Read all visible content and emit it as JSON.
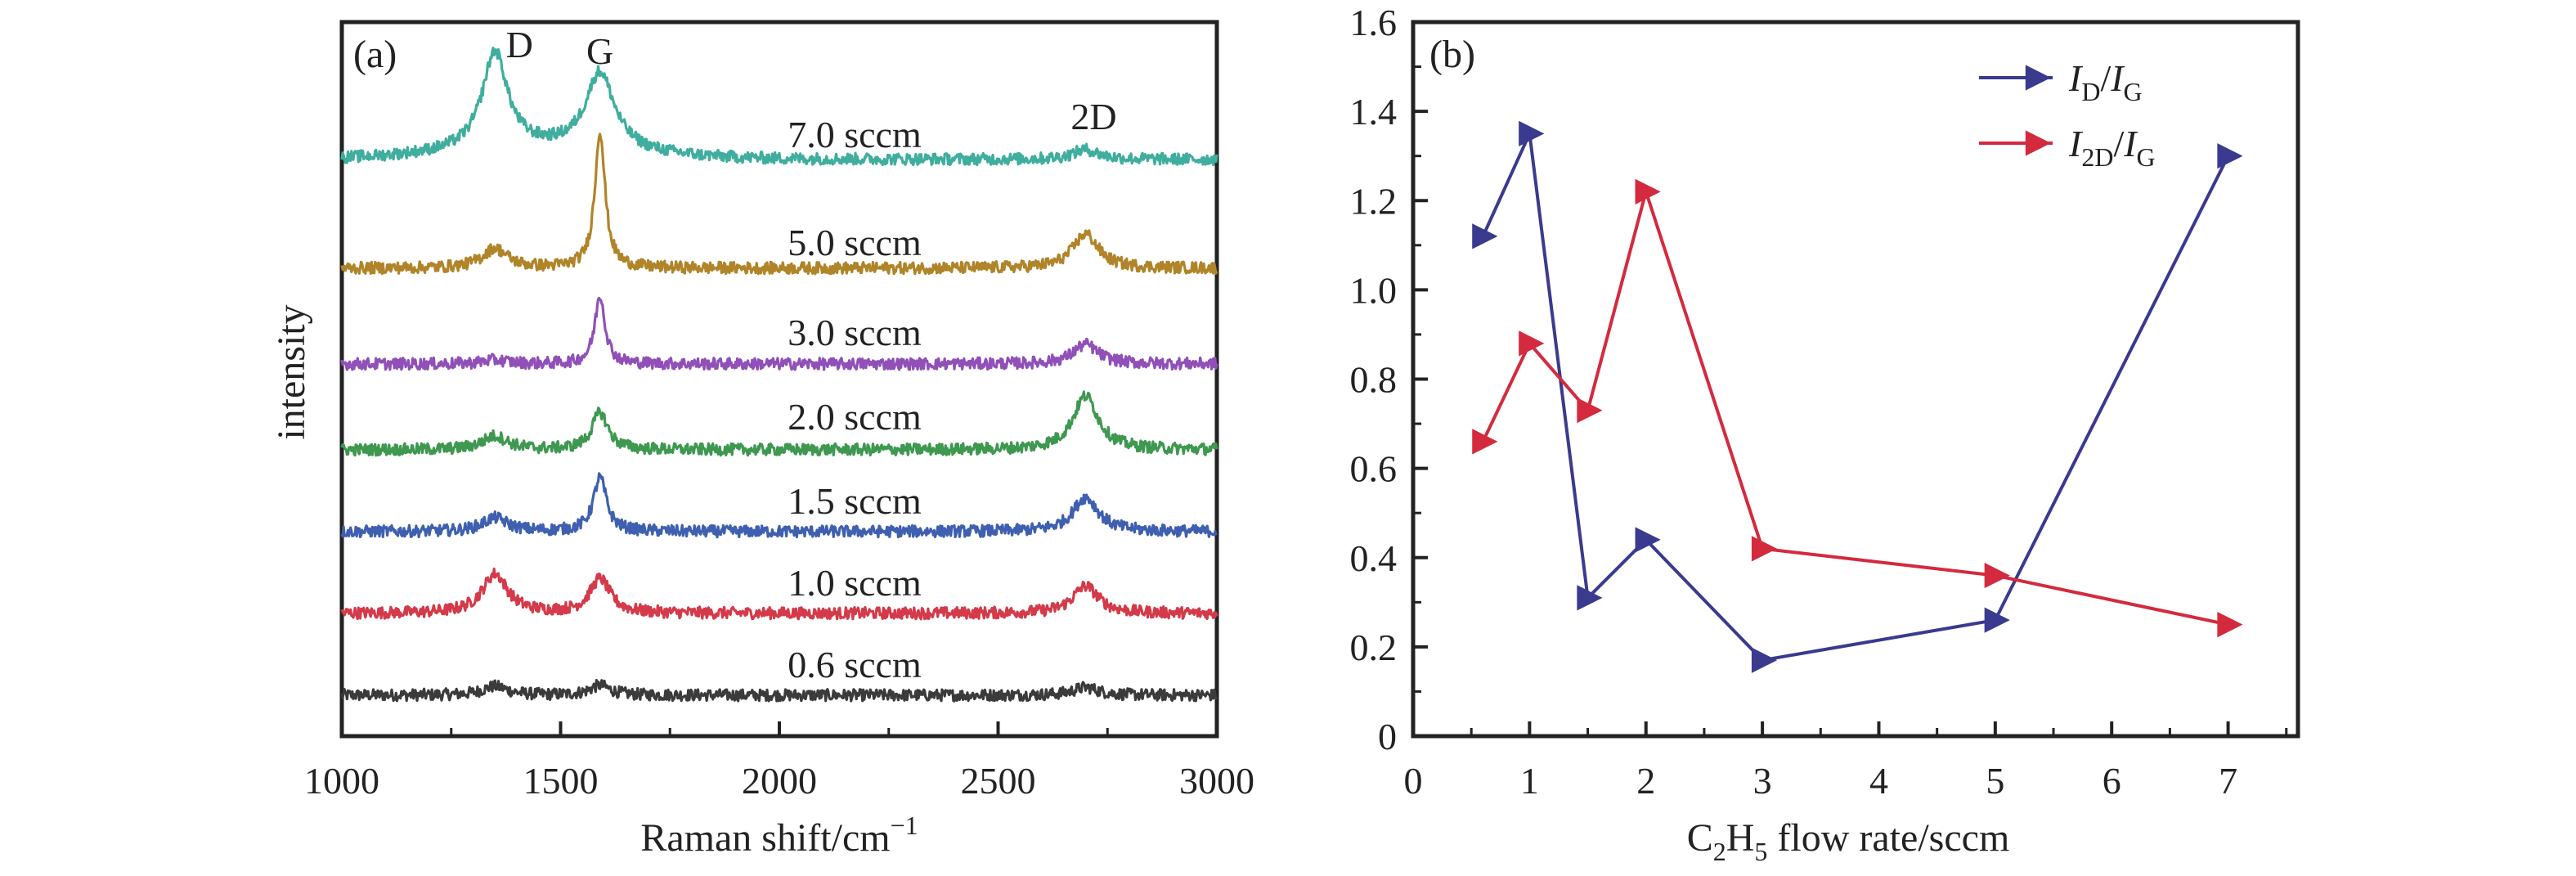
{
  "chart_data": [
    {
      "id": "a",
      "type": "line",
      "panel_label": "(a)",
      "xlabel": "Raman shift/cm",
      "xlabel_sup": "−1",
      "ylabel": "intensity",
      "xlim": [
        1000,
        3000
      ],
      "x_ticks": [
        1000,
        1500,
        2000,
        2500,
        3000
      ],
      "y_ticks_shown": false,
      "peaks": [
        {
          "label": "D",
          "x": 1350
        },
        {
          "label": "G",
          "x": 1590
        },
        {
          "label": "2D",
          "x": 2700
        }
      ],
      "series": [
        {
          "name": "0.6 sccm",
          "color": "#3b3b3b",
          "d": 0.09,
          "g": 0.1,
          "gw": 28,
          "twod": 0.08,
          "baseline": 0.0
        },
        {
          "name": "1.0 sccm",
          "color": "#d43a4a",
          "d": 0.4,
          "g": 0.35,
          "gw": 28,
          "twod": 0.28,
          "baseline": 0.0
        },
        {
          "name": "1.5 sccm",
          "color": "#3f60b0",
          "d": 0.14,
          "g": 0.55,
          "gw": 18,
          "twod": 0.35,
          "baseline": 0.0
        },
        {
          "name": "2.0 sccm",
          "color": "#3e9850",
          "d": 0.14,
          "g": 0.38,
          "gw": 22,
          "twod": 0.55,
          "baseline": 0.0
        },
        {
          "name": "3.0 sccm",
          "color": "#9050b8",
          "d": 0.04,
          "g": 0.7,
          "gw": 14,
          "twod": 0.2,
          "baseline": 0.0
        },
        {
          "name": "5.0 sccm",
          "color": "#b08428",
          "d": 0.2,
          "g": 1.4,
          "gw": 14,
          "twod": 0.35,
          "baseline": 0.0
        },
        {
          "name": "7.0 sccm",
          "color": "#3fae9e",
          "d": 1.0,
          "g": 0.8,
          "gw": 40,
          "twod": 0.1,
          "baseline": 0.0
        }
      ]
    },
    {
      "id": "b",
      "type": "line",
      "panel_label": "(b)",
      "xlabel_parts": [
        "C",
        "2",
        "H",
        "5",
        " flow rate/sccm"
      ],
      "ylabel": "",
      "xlim": [
        0,
        7.6
      ],
      "ylim": [
        0,
        1.6
      ],
      "x_ticks": [
        0,
        1,
        2,
        3,
        4,
        5,
        6,
        7
      ],
      "y_ticks": [
        0,
        0.2,
        0.4,
        0.6,
        0.8,
        1.0,
        1.2,
        1.4,
        1.6
      ],
      "y_tick_labels": [
        "0",
        "0.2",
        "0.4",
        "0.6",
        "0.8",
        "1.0",
        "1.2",
        "1.4",
        "1.6"
      ],
      "legend_position": "top-right",
      "series": [
        {
          "name": "ID/IG",
          "legend_parts": [
            "I",
            "D",
            "/",
            "I",
            "G"
          ],
          "color": "#3a3a8e",
          "x": [
            0.6,
            1.0,
            1.5,
            2.0,
            3.0,
            5.0,
            7.0
          ],
          "y": [
            1.12,
            1.35,
            0.31,
            0.44,
            0.17,
            0.26,
            1.3
          ]
        },
        {
          "name": "I2D/IG",
          "legend_parts": [
            "I",
            "2D",
            "/",
            "I",
            "G"
          ],
          "color": "#d42a3e",
          "x": [
            0.6,
            1.0,
            1.5,
            2.0,
            3.0,
            5.0,
            7.0
          ],
          "y": [
            0.66,
            0.88,
            0.73,
            1.22,
            0.42,
            0.36,
            0.25
          ]
        }
      ]
    }
  ]
}
